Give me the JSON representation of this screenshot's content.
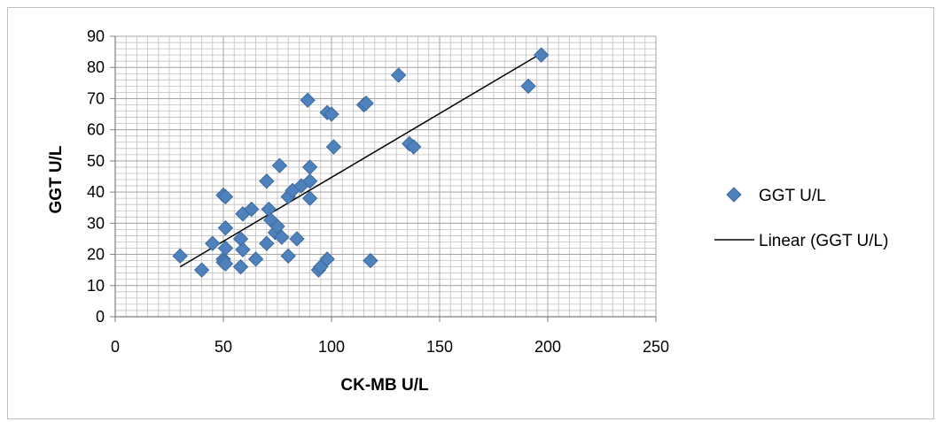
{
  "chart_data": {
    "type": "scatter",
    "title": "",
    "xlabel": "CK-MB U/L",
    "ylabel": "GGT U/L",
    "xlim": [
      0,
      250
    ],
    "ylim": [
      0,
      90
    ],
    "x_ticks": [
      0,
      50,
      100,
      150,
      200,
      250
    ],
    "y_ticks": [
      0,
      10,
      20,
      30,
      40,
      50,
      60,
      70,
      80,
      90
    ],
    "grid": true,
    "legend_position": "right",
    "colors": {
      "marker": "#4F81BD",
      "marker_edge": "#3A6A9E",
      "trendline": "#000000",
      "grid": "#bfbfbf",
      "frame": "#bfbfbf"
    },
    "series": [
      {
        "name": "GGT U/L",
        "marker": "diamond",
        "x": [
          30,
          40,
          45,
          50,
          50,
          50,
          51,
          51,
          51,
          51,
          58,
          58,
          59,
          59,
          63,
          65,
          70,
          70,
          71,
          72,
          74,
          75,
          76,
          77,
          80,
          80,
          82,
          84,
          86,
          89,
          90,
          90,
          90,
          94,
          95,
          98,
          98,
          100,
          101,
          115,
          116,
          118,
          131,
          136,
          138,
          191,
          197
        ],
        "y": [
          19.5,
          15,
          23.5,
          39,
          18.5,
          17.5,
          38.5,
          28.5,
          22,
          17,
          25,
          16,
          33,
          21.5,
          34.5,
          18.5,
          43.5,
          23.5,
          34.5,
          31,
          27,
          29,
          48.5,
          25.5,
          38.5,
          19.5,
          40.5,
          25,
          42,
          69.5,
          43.5,
          38,
          48,
          15,
          16,
          65.5,
          18.5,
          65,
          54.5,
          68,
          68.5,
          18,
          77.5,
          55.5,
          54.5,
          74,
          84
        ]
      },
      {
        "name": "Linear (GGT U/L)",
        "type": "line",
        "x": [
          30,
          197
        ],
        "y": [
          16,
          84.5
        ]
      }
    ]
  }
}
